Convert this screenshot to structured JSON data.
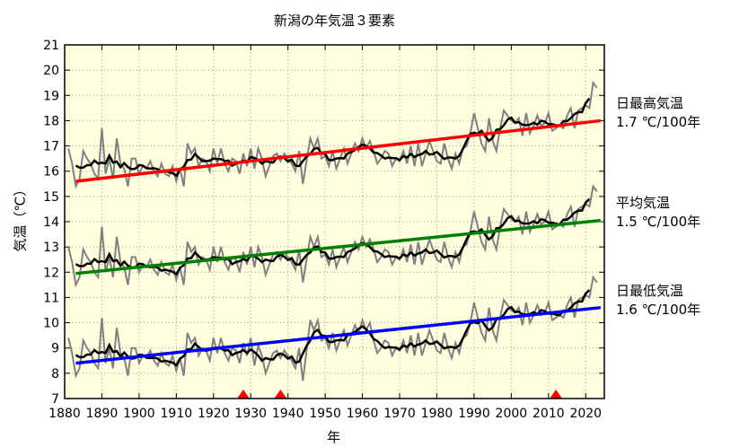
{
  "chart_data": {
    "type": "line",
    "title": "新潟の年気温３要素",
    "xlabel": "年",
    "ylabel": "気温（℃）",
    "xlim": [
      1880,
      2025
    ],
    "ylim": [
      7,
      21
    ],
    "xticks": [
      1880,
      1890,
      1900,
      1910,
      1920,
      1930,
      1940,
      1950,
      1960,
      1970,
      1980,
      1990,
      2000,
      2010,
      2020
    ],
    "yticks": [
      7,
      8,
      9,
      10,
      11,
      12,
      13,
      14,
      15,
      16,
      17,
      18,
      19,
      20,
      21
    ],
    "grid": true,
    "start_year": 1881,
    "moving_average_window": 5,
    "markers_years": [
      1928,
      1938,
      2012
    ],
    "marker_color": "#ff0000",
    "series": [
      {
        "name": "日最高気温",
        "trend_label": "1.7 ℃/100年",
        "trend_color": "#ff0000",
        "trend": [
          [
            1883,
            15.6
          ],
          [
            2024,
            18.0
          ]
        ],
        "values": [
          16.9,
          16.3,
          15.4,
          15.7,
          16.8,
          16.5,
          16.3,
          15.9,
          15.7,
          17.7,
          15.9,
          16.5,
          15.7,
          17.3,
          16.3,
          16.1,
          15.4,
          16.5,
          16.5,
          15.9,
          16.2,
          16.1,
          16.4,
          16.0,
          15.8,
          16.3,
          15.9,
          15.8,
          16.2,
          15.6,
          16.1,
          15.4,
          17.1,
          16.7,
          16.9,
          16.2,
          16.5,
          16.4,
          16.0,
          16.9,
          16.3,
          16.9,
          16.3,
          16.0,
          16.5,
          16.4,
          15.9,
          16.7,
          16.2,
          16.9,
          16.1,
          16.9,
          16.5,
          15.8,
          16.2,
          16.6,
          16.7,
          16.4,
          16.7,
          16.5,
          16.3,
          16.0,
          16.8,
          15.5,
          16.4,
          17.3,
          16.9,
          17.3,
          16.5,
          16.6,
          16.2,
          16.8,
          16.1,
          16.5,
          16.9,
          16.3,
          16.7,
          17.1,
          16.8,
          17.3,
          16.9,
          17.2,
          16.8,
          16.3,
          16.5,
          16.8,
          16.7,
          16.2,
          16.5,
          16.4,
          16.8,
          16.3,
          17.0,
          16.2,
          17.1,
          16.2,
          16.7,
          17.2,
          16.8,
          16.4,
          16.3,
          17.1,
          16.5,
          16.1,
          16.7,
          16.3,
          16.9,
          17.0,
          17.5,
          18.3,
          17.7,
          17.1,
          16.8,
          18.1,
          17.2,
          16.8,
          17.7,
          18.4,
          18.2,
          18.0,
          17.9,
          18.1,
          17.4,
          18.3,
          17.5,
          17.8,
          18.2,
          17.8,
          17.9,
          18.3,
          17.6,
          17.7,
          17.8,
          17.7,
          18.2,
          18.5,
          17.7,
          18.4,
          18.5,
          18.6,
          18.5,
          19.5,
          19.3
        ]
      },
      {
        "name": "平均気温",
        "trend_label": "1.5 ℃/100年",
        "trend_color": "#008000",
        "trend": [
          [
            1883,
            11.95
          ],
          [
            2024,
            14.05
          ]
        ],
        "values": [
          13.0,
          12.4,
          11.5,
          11.8,
          12.9,
          12.6,
          12.4,
          12.0,
          11.8,
          13.8,
          12.0,
          12.6,
          11.8,
          13.4,
          12.4,
          12.2,
          11.5,
          12.6,
          12.6,
          12.0,
          12.3,
          12.2,
          12.5,
          12.1,
          11.9,
          12.4,
          12.0,
          11.9,
          12.3,
          11.7,
          12.2,
          11.5,
          13.2,
          12.8,
          13.0,
          12.3,
          12.6,
          12.5,
          12.1,
          13.0,
          12.4,
          13.0,
          12.4,
          12.1,
          12.6,
          12.5,
          12.0,
          12.8,
          12.3,
          13.0,
          12.2,
          13.0,
          12.6,
          11.9,
          12.3,
          12.7,
          12.8,
          12.5,
          12.8,
          12.6,
          12.4,
          12.1,
          12.9,
          11.6,
          12.5,
          13.4,
          13.0,
          13.4,
          12.6,
          12.7,
          12.3,
          12.9,
          12.2,
          12.6,
          13.0,
          12.4,
          12.8,
          13.2,
          12.9,
          13.4,
          13.0,
          13.3,
          12.9,
          12.4,
          12.6,
          12.9,
          12.8,
          12.3,
          12.6,
          12.5,
          12.9,
          12.4,
          13.1,
          12.3,
          13.2,
          12.3,
          12.8,
          13.3,
          12.9,
          12.5,
          12.4,
          13.2,
          12.6,
          12.2,
          12.8,
          12.4,
          13.0,
          13.1,
          13.6,
          14.4,
          13.8,
          13.2,
          12.9,
          14.2,
          13.3,
          12.9,
          13.8,
          14.5,
          14.3,
          14.1,
          14.0,
          14.2,
          13.5,
          14.4,
          13.6,
          13.9,
          14.3,
          13.9,
          14.0,
          14.4,
          13.7,
          13.8,
          13.9,
          13.8,
          14.3,
          14.6,
          13.8,
          14.5,
          14.6,
          14.7,
          14.6,
          15.4,
          15.2
        ]
      },
      {
        "name": "日最低気温",
        "trend_label": "1.6 ℃/100年",
        "trend_color": "#0000ff",
        "trend": [
          [
            1883,
            8.4
          ],
          [
            2024,
            10.6
          ]
        ],
        "values": [
          9.4,
          8.8,
          7.9,
          8.2,
          9.3,
          9.0,
          8.8,
          8.4,
          8.2,
          10.2,
          8.4,
          9.0,
          8.2,
          9.8,
          8.8,
          8.6,
          7.9,
          9.0,
          9.0,
          8.4,
          8.7,
          8.6,
          8.9,
          8.5,
          8.3,
          8.8,
          8.4,
          8.3,
          8.7,
          8.1,
          8.6,
          7.9,
          9.6,
          9.2,
          9.4,
          8.7,
          9.0,
          8.9,
          8.5,
          9.4,
          8.8,
          9.4,
          8.8,
          8.5,
          9.0,
          8.9,
          8.4,
          9.2,
          8.7,
          9.4,
          8.3,
          9.1,
          8.7,
          8.0,
          8.4,
          8.8,
          8.9,
          8.6,
          8.9,
          8.7,
          8.5,
          8.2,
          9.0,
          7.7,
          8.9,
          10.1,
          9.7,
          10.1,
          9.3,
          9.4,
          9.0,
          9.6,
          8.9,
          9.3,
          9.7,
          9.1,
          9.5,
          9.9,
          9.6,
          10.1,
          9.7,
          10.0,
          9.3,
          8.8,
          9.0,
          9.3,
          9.2,
          8.7,
          9.0,
          8.9,
          9.3,
          8.8,
          9.5,
          8.7,
          9.6,
          8.7,
          9.2,
          9.7,
          9.3,
          8.9,
          8.8,
          9.6,
          9.0,
          8.6,
          9.2,
          8.8,
          9.4,
          9.5,
          10.0,
          10.8,
          10.2,
          9.6,
          9.3,
          10.6,
          9.7,
          9.3,
          10.2,
          10.9,
          10.7,
          10.5,
          10.4,
          10.6,
          9.9,
          10.8,
          10.0,
          10.3,
          10.7,
          10.3,
          10.4,
          10.8,
          10.1,
          10.2,
          10.3,
          10.2,
          10.7,
          11.0,
          10.2,
          10.9,
          11.0,
          11.1,
          11.0,
          11.8,
          11.6
        ]
      }
    ],
    "colors": {
      "plot_bg": "#ffffe0",
      "annual": "#808080",
      "moving_average": "#000000",
      "grid": "#999999"
    }
  }
}
